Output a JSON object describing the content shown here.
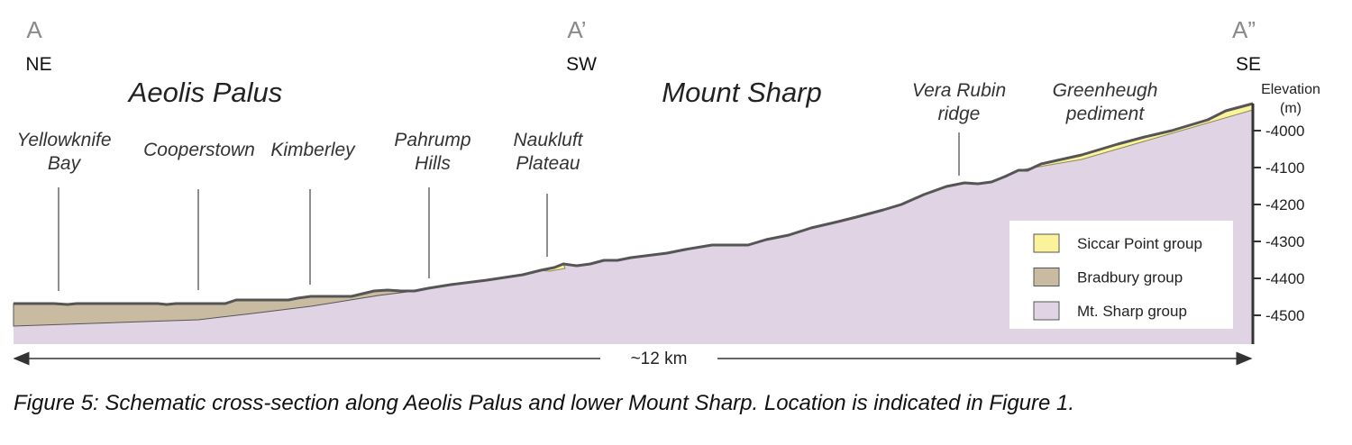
{
  "sections": [
    {
      "letter": "A",
      "direction": "NE"
    },
    {
      "letter": "A’",
      "direction": "SW"
    },
    {
      "letter": "A”",
      "direction": "SE"
    }
  ],
  "regions": [
    "Aeolis Palus",
    "Mount Sharp"
  ],
  "localities": [
    {
      "lines": [
        "Yellowknife",
        "Bay"
      ]
    },
    {
      "lines": [
        "Cooperstown"
      ]
    },
    {
      "lines": [
        "Kimberley"
      ]
    },
    {
      "lines": [
        "Pahrump",
        "Hills"
      ]
    },
    {
      "lines": [
        "Naukluft",
        "Plateau"
      ]
    },
    {
      "lines": [
        "Vera Rubin",
        "ridge"
      ]
    },
    {
      "lines": [
        "Greenheugh",
        "pediment"
      ]
    }
  ],
  "axis": {
    "title": [
      "Elevation",
      "(m)"
    ],
    "ticks": [
      -4000,
      -4100,
      -4200,
      -4300,
      -4400,
      -4500
    ]
  },
  "legend": [
    {
      "label": "Siccar Point group",
      "color": "#fbf29c"
    },
    {
      "label": "Bradbury group",
      "color": "#c9bba1"
    },
    {
      "label": "Mt. Sharp group",
      "color": "#e0d3e4"
    }
  ],
  "scale": "~12 km",
  "caption": "Figure 5: Schematic cross-section along Aeolis Palus and lower Mount Sharp. Location is indicated in Figure 1."
}
